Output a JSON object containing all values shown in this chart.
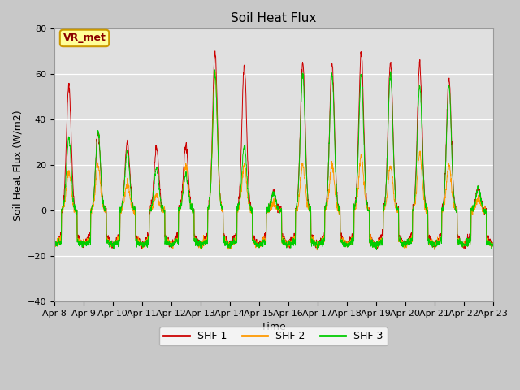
{
  "title": "Soil Heat Flux",
  "ylabel": "Soil Heat Flux (W/m2)",
  "xlabel": "Time",
  "ylim": [
    -40,
    80
  ],
  "tick_labels": [
    "Apr 8",
    "Apr 9",
    "Apr 10",
    "Apr 11",
    "Apr 12",
    "Apr 13",
    "Apr 14",
    "Apr 15",
    "Apr 16",
    "Apr 17",
    "Apr 18",
    "Apr 19",
    "Apr 20",
    "Apr 21",
    "Apr 22",
    "Apr 23"
  ],
  "legend_labels": [
    "SHF 1",
    "SHF 2",
    "SHF 3"
  ],
  "colors": [
    "#cc0000",
    "#ff9900",
    "#00cc00"
  ],
  "annotation_text": "VR_met",
  "annotation_bg": "#ffff99",
  "annotation_border": "#cc9900",
  "fig_bg_color": "#c8c8c8",
  "plot_bg_color": "#e0e0e0",
  "title_fontsize": 11,
  "axis_label_fontsize": 9,
  "tick_fontsize": 8,
  "legend_fontsize": 9,
  "peaks_shf1": [
    55,
    34,
    30,
    28,
    29,
    70,
    64,
    8,
    65,
    65,
    70,
    65,
    65,
    58,
    10
  ],
  "peaks_shf2": [
    17,
    20,
    12,
    7,
    20,
    60,
    20,
    3,
    20,
    20,
    24,
    20,
    25,
    20,
    5
  ],
  "peaks_shf3": [
    32,
    35,
    26,
    19,
    16,
    60,
    29,
    8,
    60,
    60,
    60,
    60,
    55,
    55,
    10
  ],
  "night_base": -10,
  "night_extra": -5
}
